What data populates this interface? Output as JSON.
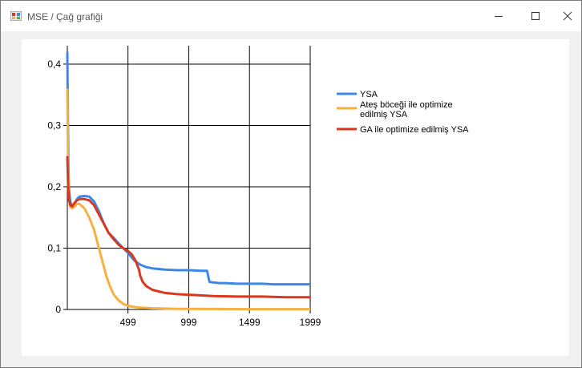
{
  "window": {
    "title": "MSE / Çağ grafiği",
    "icons": {
      "app": "chart-app-icon",
      "minimize": "minimize-icon",
      "maximize": "maximize-icon",
      "close": "close-icon"
    }
  },
  "chart_data": {
    "type": "line",
    "title": "",
    "xlabel": "",
    "ylabel": "",
    "xlim": [
      0,
      1999
    ],
    "ylim": [
      0,
      0.43
    ],
    "xticks": [
      499,
      999,
      1499,
      1999
    ],
    "xtick_labels": [
      "499",
      "999",
      "1499",
      "1999"
    ],
    "yticks": [
      0,
      0.1,
      0.2,
      0.3,
      0.4
    ],
    "ytick_labels": [
      "0",
      "0,1",
      "0,2",
      "0,3",
      "0,4"
    ],
    "grid": true,
    "legend_position": "right",
    "series": [
      {
        "name": "YSA",
        "color": "#3c87e8",
        "x": [
          0,
          5,
          12,
          25,
          40,
          60,
          80,
          100,
          140,
          180,
          220,
          260,
          300,
          340,
          380,
          420,
          460,
          500,
          550,
          600,
          650,
          700,
          800,
          900,
          1000,
          1100,
          1150,
          1170,
          1200,
          1250,
          1300,
          1400,
          1500,
          1600,
          1700,
          1800,
          1900,
          1999
        ],
        "y": [
          0.42,
          0.3,
          0.2,
          0.175,
          0.168,
          0.172,
          0.18,
          0.184,
          0.185,
          0.184,
          0.176,
          0.16,
          0.14,
          0.125,
          0.117,
          0.108,
          0.1,
          0.092,
          0.08,
          0.073,
          0.069,
          0.067,
          0.065,
          0.064,
          0.064,
          0.063,
          0.063,
          0.045,
          0.044,
          0.043,
          0.043,
          0.042,
          0.042,
          0.042,
          0.041,
          0.041,
          0.041,
          0.041
        ]
      },
      {
        "name": "Ateş böceği ile optimize edilmiş YSA",
        "color": "#f5b041",
        "x": [
          0,
          5,
          12,
          25,
          40,
          60,
          80,
          100,
          140,
          180,
          220,
          260,
          280,
          300,
          320,
          350,
          380,
          420,
          460,
          500,
          550,
          600,
          700,
          800,
          900,
          1000,
          1200,
          1500,
          1999
        ],
        "y": [
          0.36,
          0.25,
          0.18,
          0.167,
          0.165,
          0.168,
          0.172,
          0.172,
          0.165,
          0.15,
          0.13,
          0.1,
          0.085,
          0.07,
          0.055,
          0.038,
          0.025,
          0.015,
          0.009,
          0.006,
          0.004,
          0.003,
          0.002,
          0.0015,
          0.001,
          0.001,
          0.0008,
          0.0005,
          0.0005
        ]
      },
      {
        "name": "GA ile optimize edilmiş YSA",
        "color": "#d9381e",
        "x": [
          0,
          5,
          12,
          25,
          40,
          60,
          80,
          100,
          140,
          180,
          220,
          260,
          300,
          340,
          380,
          420,
          460,
          500,
          530,
          560,
          590,
          600,
          620,
          650,
          700,
          800,
          900,
          1000,
          1200,
          1400,
          1600,
          1800,
          1999
        ],
        "y": [
          0.25,
          0.21,
          0.18,
          0.17,
          0.168,
          0.174,
          0.178,
          0.18,
          0.18,
          0.178,
          0.17,
          0.155,
          0.14,
          0.125,
          0.115,
          0.106,
          0.1,
          0.095,
          0.09,
          0.08,
          0.065,
          0.055,
          0.045,
          0.038,
          0.032,
          0.027,
          0.025,
          0.024,
          0.022,
          0.021,
          0.021,
          0.02,
          0.02
        ]
      }
    ]
  }
}
